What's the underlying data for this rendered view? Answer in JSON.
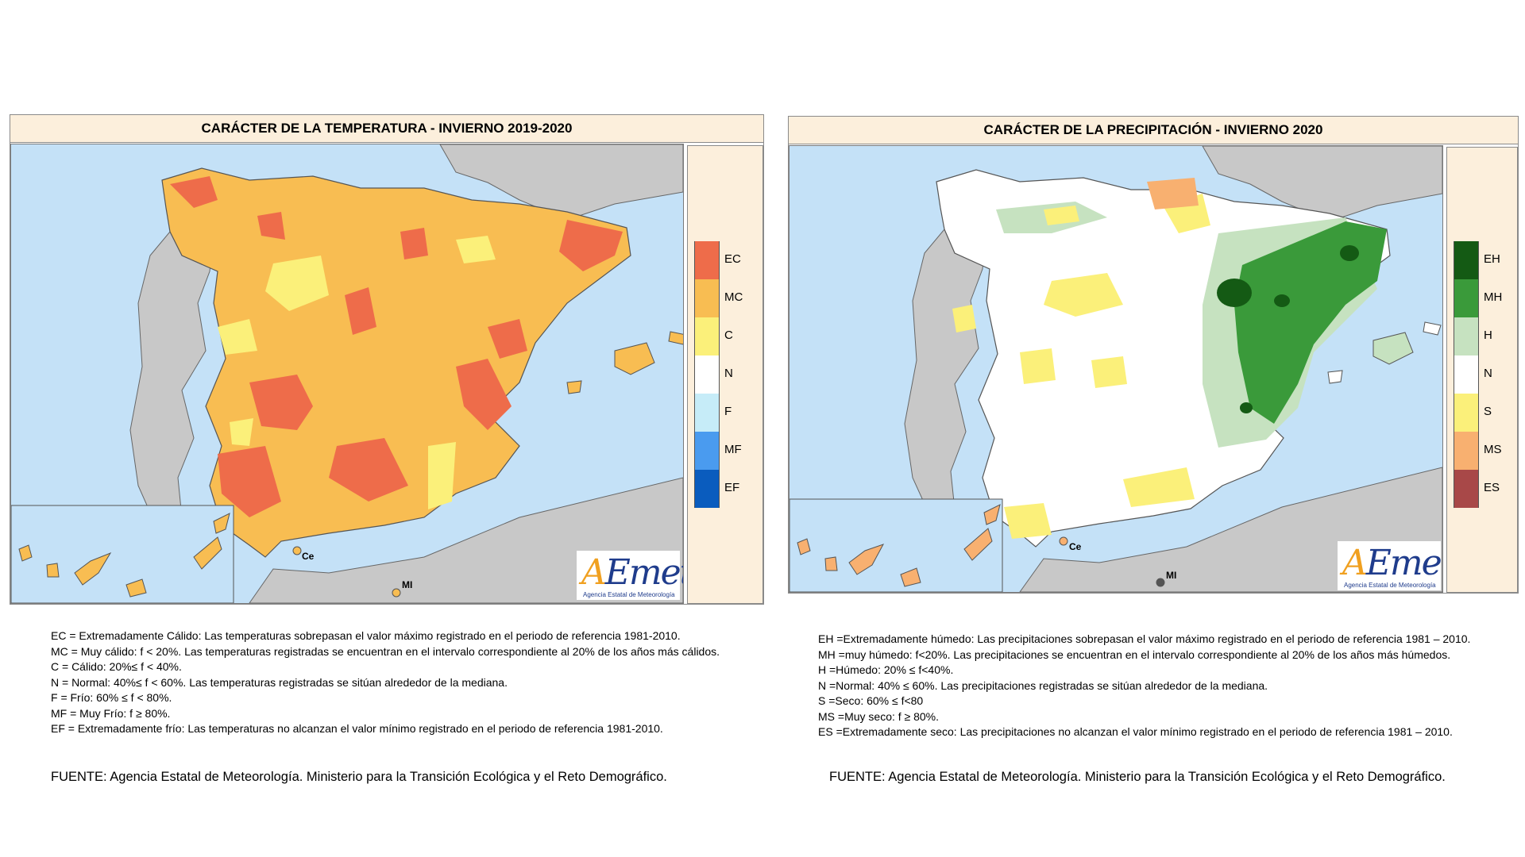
{
  "temperature_panel": {
    "title": "CARÁCTER DE LA TEMPERATURA - INVIERNO 2019-2020",
    "legend": [
      {
        "code": "EC",
        "color": "#ee6c4a"
      },
      {
        "code": "MC",
        "color": "#f8bd52"
      },
      {
        "code": "C",
        "color": "#fbf07a"
      },
      {
        "code": "N",
        "color": "#ffffff"
      },
      {
        "code": "F",
        "color": "#c6ecf8"
      },
      {
        "code": "MF",
        "color": "#4a9bef"
      },
      {
        "code": "EF",
        "color": "#0a5cbe"
      }
    ],
    "map_labels": {
      "ceuta": "Ce",
      "melilla": "MI"
    },
    "logo": {
      "text_a": "A",
      "text_rest": "Emet",
      "subtitle": "Agencia Estatal de Meteorología"
    },
    "notes": [
      "EC = Extremadamente Cálido: Las temperaturas sobrepasan el valor máximo registrado en el periodo de referencia 1981-2010.",
      "MC = Muy cálido: f < 20%. Las temperaturas registradas se encuentran en el intervalo correspondiente al 20% de los años más cálidos.",
      "C = Cálido: 20%≤ f < 40%.",
      "N = Normal: 40%≤ f < 60%. Las temperaturas registradas se sitúan alrededor de la mediana.",
      "F = Frío: 60% ≤ f < 80%.",
      "MF = Muy Frío: f ≥ 80%.",
      "EF = Extremadamente frío: Las temperaturas no alcanzan el valor mínimo registrado en el periodo de referencia 1981-2010."
    ],
    "source": "FUENTE: Agencia Estatal de Meteorología. Ministerio para la Transición Ecológica y el Reto Demográfico."
  },
  "precipitation_panel": {
    "title": "CARÁCTER DE LA PRECIPITACIÓN - INVIERNO 2020",
    "legend": [
      {
        "code": "EH",
        "color": "#145a14"
      },
      {
        "code": "MH",
        "color": "#3a9a3a"
      },
      {
        "code": "H",
        "color": "#c6e2c0"
      },
      {
        "code": "N",
        "color": "#ffffff"
      },
      {
        "code": "S",
        "color": "#fbf07a"
      },
      {
        "code": "MS",
        "color": "#f8b070"
      },
      {
        "code": "ES",
        "color": "#a84848"
      }
    ],
    "map_labels": {
      "ceuta": "Ce",
      "melilla": "MI"
    },
    "logo": {
      "text_a": "A",
      "text_rest": "Emet",
      "subtitle": "Agencia Estatal de Meteorología"
    },
    "notes": [
      "EH =Extremadamente húmedo: Las precipitaciones sobrepasan el valor máximo registrado en el periodo de referencia 1981 – 2010.",
      "MH =muy húmedo: f<20%. Las precipitaciones se encuentran en el intervalo correspondiente al 20% de los años más húmedos.",
      "H =Húmedo: 20% ≤ f<40%.",
      "N =Normal: 40% ≤ 60%. Las precipitaciones registradas se sitúan alrededor de la mediana.",
      "S =Seco: 60% ≤ f<80",
      "MS =Muy seco: f ≥ 80%.",
      "ES =Extremadamente seco: Las precipitaciones no alcanzan el valor mínimo registrado en el periodo de referencia 1981 – 2010."
    ],
    "source": "FUENTE: Agencia Estatal de Meteorología. Ministerio para la Transición Ecológica y el Reto Demográfico."
  }
}
